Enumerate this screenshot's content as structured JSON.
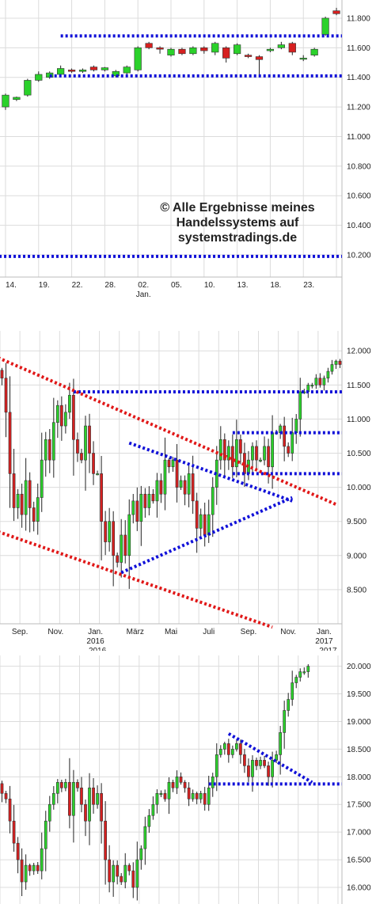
{
  "colors": {
    "up": "#2bd12b",
    "down": "#d62020",
    "support": "#1010d8",
    "trend": "#e01818",
    "grid": "#dcdcdc",
    "axis": "#222222"
  },
  "watermark": [
    "© Alle Ergebnisse meines",
    "Handelssystems auf",
    "systemstradings.de"
  ],
  "chart_data": [
    {
      "type": "candlestick",
      "ylim": [
        10050,
        11880
      ],
      "y_ticks": [
        11800,
        11600,
        11400,
        11200,
        11000,
        10800,
        10600,
        10400,
        10200
      ],
      "y_tick_labels": [
        "11.800",
        "11.600",
        "11.400",
        "11.200",
        "11.000",
        "10.800",
        "10.600",
        "10.400",
        "10.200"
      ],
      "x_labels": [
        {
          "i": 0.5,
          "text": "14."
        },
        {
          "i": 3.5,
          "text": "19."
        },
        {
          "i": 6.5,
          "text": "22."
        },
        {
          "i": 9.5,
          "text": "28."
        },
        {
          "i": 12.5,
          "text": "02.",
          "sub": "Jan."
        },
        {
          "i": 15.5,
          "text": "05."
        },
        {
          "i": 18.5,
          "text": "10."
        },
        {
          "i": 21.5,
          "text": "13."
        },
        {
          "i": 24.5,
          "text": "18."
        },
        {
          "i": 27.5,
          "text": "23."
        }
      ],
      "n_slots": 31,
      "candles": [
        [
          0,
          11200,
          11280,
          11180,
          11290
        ],
        [
          1,
          11250,
          11265,
          11240,
          11270
        ],
        [
          2,
          11280,
          11380,
          11270,
          11390
        ],
        [
          3,
          11380,
          11420,
          11370,
          11440
        ],
        [
          4,
          11400,
          11430,
          11390,
          11440
        ],
        [
          5,
          11420,
          11460,
          11410,
          11480
        ],
        [
          6,
          11450,
          11440,
          11430,
          11460
        ],
        [
          7,
          11440,
          11450,
          11430,
          11460
        ],
        [
          8,
          11470,
          11450,
          11440,
          11480
        ],
        [
          9,
          11450,
          11465,
          11440,
          11470
        ],
        [
          10,
          11410,
          11440,
          11400,
          11450
        ],
        [
          11,
          11430,
          11470,
          11420,
          11480
        ],
        [
          12,
          11450,
          11600,
          11440,
          11610
        ],
        [
          13,
          11630,
          11600,
          11590,
          11640
        ],
        [
          14,
          11600,
          11590,
          11560,
          11610
        ],
        [
          15,
          11550,
          11590,
          11540,
          11600
        ],
        [
          16,
          11590,
          11560,
          11550,
          11600
        ],
        [
          17,
          11560,
          11600,
          11550,
          11610
        ],
        [
          18,
          11600,
          11580,
          11560,
          11610
        ],
        [
          19,
          11570,
          11630,
          11550,
          11640
        ],
        [
          20,
          11600,
          11530,
          11500,
          11610
        ],
        [
          21,
          11560,
          11620,
          11550,
          11630
        ],
        [
          22,
          11550,
          11540,
          11530,
          11560
        ],
        [
          23,
          11540,
          11520,
          11420,
          11550
        ],
        [
          24,
          11580,
          11590,
          11570,
          11600
        ],
        [
          25,
          11600,
          11620,
          11590,
          11640
        ],
        [
          26,
          11630,
          11570,
          11550,
          11640
        ],
        [
          27,
          11530,
          11530,
          11510,
          11550
        ],
        [
          28,
          11550,
          11590,
          11540,
          11600
        ],
        [
          29,
          11690,
          11800,
          11680,
          11810
        ],
        [
          30,
          11850,
          11830,
          11820,
          11870
        ]
      ],
      "hlines": [
        {
          "y": 11680,
          "from": 5
        },
        {
          "y": 11410,
          "from": 4
        },
        {
          "y": 10190,
          "from": -1
        }
      ]
    },
    {
      "type": "candlestick",
      "ylim": [
        8000,
        12200
      ],
      "y_ticks": [
        12000,
        11500,
        11000,
        10500,
        10000,
        9500,
        9000,
        8500
      ],
      "y_tick_labels": [
        "12.000",
        "11.500",
        "11.000",
        "10.500",
        "10.000",
        "9.500",
        "9.000",
        "8.500"
      ],
      "x_labels": [
        {
          "i": 4.5,
          "text": "Sep."
        },
        {
          "i": 13.5,
          "text": "Nov."
        },
        {
          "i": 23.5,
          "text": "Jan.",
          "sub": "2016"
        },
        {
          "i": 33.5,
          "text": "März"
        },
        {
          "i": 42.5,
          "text": "Mai"
        },
        {
          "i": 52,
          "text": "Juli"
        },
        {
          "i": 62,
          "text": "Sep."
        },
        {
          "i": 72,
          "text": "Nov."
        },
        {
          "i": 81,
          "text": "Jan.",
          "sub": "2017"
        }
      ],
      "extra_labels": [
        {
          "i": 24,
          "text": "2016"
        },
        {
          "i": 82,
          "text": "2017"
        }
      ],
      "n_slots": 86,
      "closes": [
        11600,
        11100,
        10200,
        9700,
        9900,
        9600,
        10100,
        9700,
        9500,
        9850,
        10400,
        10700,
        10400,
        10950,
        11200,
        10900,
        11100,
        11350,
        10700,
        10500,
        10400,
        10900,
        10500,
        10200,
        10200,
        9500,
        9200,
        9500,
        9000,
        8900,
        9300,
        9000,
        9600,
        9800,
        9500,
        9900,
        9700,
        9900,
        9800,
        10100,
        9900,
        10400,
        10300,
        10400,
        10000,
        10100,
        9900,
        10200,
        9800,
        9400,
        9600,
        9300,
        9600,
        10000,
        10400,
        10700,
        10400,
        10600,
        10300,
        10700,
        10500,
        10200,
        10400,
        10600,
        10400,
        10400,
        10600,
        10300,
        10800,
        10800,
        10900,
        10600,
        10500,
        10800,
        11000,
        11400,
        11400,
        11500,
        11500,
        11600,
        11500,
        11600,
        11700,
        11800,
        11850,
        11800
      ],
      "hlines": [
        {
          "y": 11400,
          "from": 18
        },
        {
          "y": 10800,
          "from": 58
        },
        {
          "y": 10200,
          "from": 58
        }
      ],
      "trendlines": [
        {
          "color": "trend",
          "p1": [
            -1,
            11900
          ],
          "p2": [
            84,
            9750
          ]
        },
        {
          "color": "trend",
          "p1": [
            -1,
            9350
          ],
          "p2": [
            68,
            7950
          ]
        },
        {
          "color": "support",
          "p1": [
            32,
            10650
          ],
          "p2": [
            73,
            9800
          ]
        },
        {
          "color": "support",
          "p1": [
            30,
            8750
          ],
          "p2": [
            73,
            9850
          ]
        }
      ]
    },
    {
      "type": "candlestick",
      "ylim": [
        15700,
        20080
      ],
      "y_ticks": [
        20000,
        19500,
        19000,
        18500,
        18000,
        17500,
        17000,
        16500,
        16000
      ],
      "y_tick_labels": [
        "20.000",
        "19.500",
        "19.000",
        "18.500",
        "18.000",
        "17.500",
        "17.000",
        "16.500",
        "16.000"
      ],
      "x_labels": [],
      "n_slots": 86,
      "closes": [
        17700,
        17600,
        17200,
        16800,
        16500,
        16100,
        16400,
        16300,
        16400,
        16300,
        16700,
        17200,
        17500,
        17700,
        17900,
        17800,
        17900,
        17300,
        17900,
        17800,
        17500,
        17200,
        17800,
        17500,
        17700,
        17200,
        16500,
        16100,
        16400,
        16200,
        16100,
        16400,
        16300,
        16000,
        16500,
        16700,
        17100,
        17300,
        17500,
        17700,
        17700,
        17600,
        17900,
        17800,
        18000,
        17900,
        17800,
        17600,
        17700,
        17600,
        17700,
        17500,
        17800,
        18000,
        18400,
        18500,
        18600,
        18400,
        18500,
        18600,
        18400,
        18200,
        18000,
        18300,
        18200,
        18300,
        18200,
        18000,
        18300,
        18400,
        18800,
        19200,
        19400,
        19700,
        19800,
        19900,
        19900,
        20000
      ],
      "hlines": [
        {
          "y": 17870,
          "from": 52
        }
      ],
      "trendlines": [
        {
          "color": "support",
          "p1": [
            57,
            18780
          ],
          "p2": [
            78,
            17900
          ]
        }
      ]
    }
  ]
}
